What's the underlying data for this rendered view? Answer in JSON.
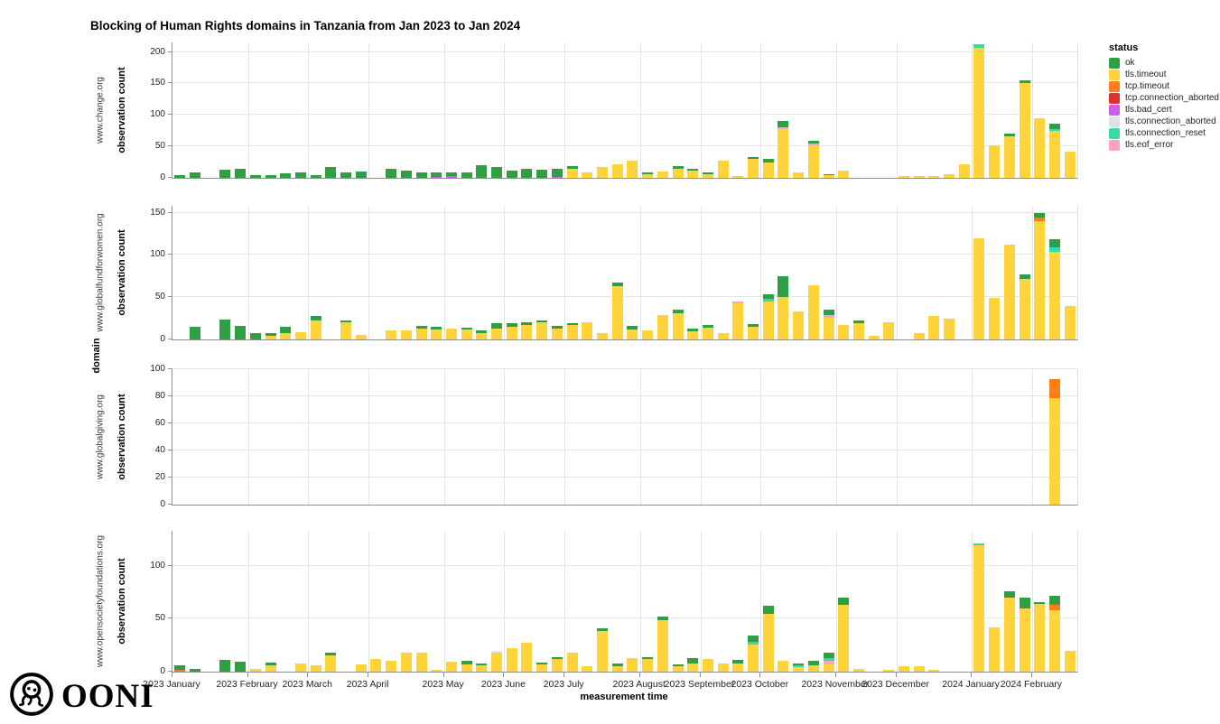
{
  "title": "Blocking of Human Rights domains in Tanzania from Jan 2023 to Jan 2024",
  "logo": {
    "text": "OONI"
  },
  "legend": {
    "title": "status",
    "items": [
      {
        "label": "ok",
        "color": "#2f9e44"
      },
      {
        "label": "tls.timeout",
        "color": "#ffd43b"
      },
      {
        "label": "tcp.timeout",
        "color": "#fd7e14"
      },
      {
        "label": "tcp.connection_aborted",
        "color": "#e03131"
      },
      {
        "label": "tls.bad_cert",
        "color": "#cc5de8"
      },
      {
        "label": "tls.connection_aborted",
        "color": "#dee2e6"
      },
      {
        "label": "tls.connection_reset",
        "color": "#38d9a9"
      },
      {
        "label": "tls.eof_error",
        "color": "#faa2c1"
      }
    ]
  },
  "stack_order": [
    "tls.bad_cert",
    "tls.timeout",
    "tcp.timeout",
    "tcp.connection_aborted",
    "tls.connection_aborted",
    "tls.eof_error",
    "tls.connection_reset",
    "ok"
  ],
  "axes": {
    "x_label": "measurement time",
    "y_label": "observation count",
    "shared_y_label": "domain",
    "total_slots": 60,
    "months": [
      {
        "label": "2023 January",
        "start": 0
      },
      {
        "label": "2023 February",
        "start": 5
      },
      {
        "label": "2023 March",
        "start": 9
      },
      {
        "label": "2023 April",
        "start": 13
      },
      {
        "label": "2023 May",
        "start": 18
      },
      {
        "label": "2023 June",
        "start": 22
      },
      {
        "label": "2023 July",
        "start": 26
      },
      {
        "label": "2023 August",
        "start": 31
      },
      {
        "label": "2023 September",
        "start": 35
      },
      {
        "label": "2023 October",
        "start": 39
      },
      {
        "label": "2023 November",
        "start": 44
      },
      {
        "label": "2023 December",
        "start": 48
      },
      {
        "label": "2024 January",
        "start": 53
      },
      {
        "label": "2024 February",
        "start": 57
      }
    ]
  },
  "chart_data": [
    {
      "type": "bar",
      "domain": "www.change.org",
      "yticks": [
        0,
        50,
        100,
        150,
        200
      ],
      "ylim": 215,
      "bars": [
        {
          "ok": 5
        },
        {
          "ok": 8
        },
        null,
        {
          "ok": 13
        },
        {
          "ok": 15
        },
        {
          "ok": 5
        },
        {
          "ok": 4
        },
        {
          "ok": 7
        },
        {
          "ok": 8
        },
        {
          "ok": 5
        },
        {
          "ok": 17
        },
        {
          "ok": 8
        },
        {
          "ok": 10
        },
        null,
        {
          "ok": 14
        },
        {
          "ok": 12
        },
        {
          "ok": 8
        },
        {
          "tls.bad_cert": 2,
          "ok": 7
        },
        {
          "tls.bad_cert": 3,
          "ok": 5
        },
        {
          "ok": 8
        },
        {
          "ok": 20
        },
        {
          "ok": 17
        },
        {
          "ok": 12
        },
        {
          "ok": 15
        },
        {
          "ok": 13
        },
        {
          "tls.bad_cert": 2,
          "ok": 12
        },
        {
          "tls.timeout": 15,
          "ok": 3
        },
        {
          "tls.timeout": 8
        },
        {
          "tls.timeout": 17
        },
        {
          "tls.timeout": 22
        },
        {
          "tls.timeout": 27
        },
        {
          "tls.timeout": 6,
          "ok": 2
        },
        {
          "tls.timeout": 10
        },
        {
          "tls.timeout": 15,
          "ok": 3
        },
        {
          "tls.timeout": 12,
          "ok": 2
        },
        {
          "tls.timeout": 6,
          "ok": 3
        },
        {
          "tls.timeout": 27
        },
        {
          "tls.timeout": 3
        },
        {
          "tls.timeout": 30,
          "ok": 3
        },
        {
          "tls.timeout": 25,
          "ok": 5
        },
        {
          "tls.timeout": 78,
          "tls.eof_error": 2,
          "ok": 10
        },
        {
          "tls.timeout": 8
        },
        {
          "tls.timeout": 52,
          "tls.eof_error": 1,
          "ok": 5
        },
        {
          "tls.timeout": 4,
          "ok": 2
        },
        {
          "tls.timeout": 12
        },
        null,
        null,
        null,
        {
          "tls.timeout": 3
        },
        {
          "tls.timeout": 3
        },
        {
          "tls.timeout": 3
        },
        {
          "tls.timeout": 6
        },
        {
          "tls.timeout": 21
        },
        {
          "tls.timeout": 206,
          "tls.connection_reset": 6
        },
        {
          "tls.timeout": 51
        },
        {
          "tls.timeout": 66,
          "ok": 5
        },
        {
          "tls.timeout": 150,
          "ok": 5
        },
        {
          "tls.timeout": 95
        },
        {
          "tls.timeout": 74,
          "tls.connection_reset": 4,
          "ok": 8
        },
        {
          "tls.timeout": 42
        }
      ]
    },
    {
      "type": "bar",
      "domain": "www.globalfundforwomen.org",
      "yticks": [
        0,
        50,
        100,
        150
      ],
      "ylim": 158,
      "bars": [
        null,
        {
          "ok": 15
        },
        null,
        {
          "ok": 24
        },
        {
          "ok": 16
        },
        {
          "ok": 8
        },
        {
          "tls.timeout": 4,
          "ok": 4
        },
        {
          "tls.timeout": 8,
          "ok": 7
        },
        {
          "tls.timeout": 9
        },
        {
          "tls.timeout": 22,
          "ok": 6
        },
        null,
        {
          "tls.timeout": 20,
          "ok": 3
        },
        {
          "tls.timeout": 5
        },
        null,
        {
          "tls.timeout": 11
        },
        {
          "tls.timeout": 11
        },
        {
          "tls.timeout": 13,
          "ok": 3
        },
        {
          "tls.timeout": 12,
          "ok": 3
        },
        {
          "tls.timeout": 13
        },
        {
          "tls.timeout": 12,
          "ok": 2
        },
        {
          "tls.timeout": 8,
          "ok": 3
        },
        {
          "tls.timeout": 13,
          "ok": 6
        },
        {
          "tls.timeout": 15,
          "ok": 4
        },
        {
          "tls.timeout": 17,
          "ok": 3
        },
        {
          "tls.timeout": 20,
          "ok": 3
        },
        {
          "tls.timeout": 13,
          "ok": 3
        },
        {
          "tls.timeout": 17,
          "ok": 2
        },
        {
          "tls.timeout": 20
        },
        {
          "tls.timeout": 7
        },
        {
          "tls.timeout": 63,
          "ok": 4
        },
        {
          "tls.timeout": 12,
          "ok": 4
        },
        {
          "tls.timeout": 11
        },
        {
          "tls.timeout": 29
        },
        {
          "tls.timeout": 31,
          "ok": 4
        },
        {
          "tls.timeout": 10,
          "ok": 3
        },
        {
          "tls.timeout": 14,
          "ok": 3
        },
        {
          "tls.timeout": 8
        },
        {
          "tls.timeout": 43,
          "tls.eof_error": 2
        },
        {
          "tls.timeout": 15,
          "ok": 3
        },
        {
          "tls.timeout": 45,
          "tls.connection_reset": 3,
          "ok": 5
        },
        {
          "tls.timeout": 50,
          "ok": 25
        },
        {
          "tls.timeout": 33
        },
        {
          "tls.timeout": 64
        },
        {
          "tls.timeout": 26,
          "tls.eof_error": 3,
          "ok": 6
        },
        {
          "tls.timeout": 17
        },
        {
          "tls.timeout": 19,
          "ok": 4
        },
        {
          "tls.timeout": 4
        },
        {
          "tls.timeout": 20
        },
        null,
        {
          "tls.timeout": 7
        },
        {
          "tls.timeout": 28
        },
        {
          "tls.timeout": 25
        },
        null,
        {
          "tls.timeout": 120
        },
        {
          "tls.timeout": 49
        },
        {
          "tls.timeout": 112
        },
        {
          "tls.timeout": 72,
          "ok": 5
        },
        {
          "tls.timeout": 140,
          "tcp.timeout": 4,
          "ok": 5
        },
        {
          "tls.timeout": 104,
          "tls.connection_reset": 5,
          "ok": 10
        },
        {
          "tls.timeout": 40
        }
      ]
    },
    {
      "type": "bar",
      "domain": "www.globalgiving.org",
      "yticks": [
        0,
        20,
        40,
        60,
        80,
        100
      ],
      "ylim": 100,
      "bars": [
        null,
        null,
        null,
        null,
        null,
        null,
        null,
        null,
        null,
        null,
        null,
        null,
        null,
        null,
        null,
        null,
        null,
        null,
        null,
        null,
        null,
        null,
        null,
        null,
        null,
        null,
        null,
        null,
        null,
        null,
        null,
        null,
        null,
        null,
        null,
        null,
        null,
        null,
        null,
        null,
        null,
        null,
        null,
        null,
        null,
        null,
        null,
        null,
        null,
        null,
        null,
        null,
        null,
        null,
        null,
        null,
        null,
        null,
        {
          "tls.timeout": 79,
          "tcp.timeout": 14
        },
        null
      ]
    },
    {
      "type": "bar",
      "domain": "www.opensocietyfoundations.org",
      "yticks": [
        0,
        50,
        100
      ],
      "ylim": 133,
      "bars": [
        {
          "tcp.timeout": 2,
          "ok": 4
        },
        {
          "ok": 3
        },
        null,
        {
          "ok": 11
        },
        {
          "ok": 9
        },
        {
          "tls.timeout": 3
        },
        {
          "tls.timeout": 6,
          "ok": 3
        },
        null,
        {
          "tls.timeout": 8
        },
        {
          "tls.timeout": 6
        },
        {
          "tls.timeout": 15,
          "ok": 3
        },
        null,
        {
          "tls.timeout": 7
        },
        {
          "tls.timeout": 12
        },
        {
          "tls.timeout": 10
        },
        {
          "tls.timeout": 18
        },
        {
          "tls.timeout": 18
        },
        {
          "tls.timeout": 2
        },
        {
          "tls.timeout": 9
        },
        {
          "tls.timeout": 7,
          "ok": 3
        },
        {
          "tls.timeout": 6,
          "ok": 2
        },
        {
          "tls.timeout": 18,
          "tls.connection_aborted": 2
        },
        {
          "tls.timeout": 22
        },
        {
          "tls.timeout": 27
        },
        {
          "tls.timeout": 7,
          "ok": 2
        },
        {
          "tls.timeout": 12,
          "ok": 2
        },
        {
          "tls.timeout": 18
        },
        {
          "tls.timeout": 5
        },
        {
          "tls.timeout": 38,
          "ok": 3
        },
        {
          "tls.timeout": 5,
          "ok": 3
        },
        {
          "tls.timeout": 13
        },
        {
          "tls.timeout": 12,
          "ok": 2
        },
        {
          "tls.timeout": 49,
          "ok": 3
        },
        {
          "tls.timeout": 5,
          "ok": 2
        },
        {
          "tls.timeout": 8,
          "ok": 5
        },
        {
          "tls.timeout": 12
        },
        {
          "tls.timeout": 8
        },
        {
          "tls.timeout": 8,
          "ok": 3
        },
        {
          "tls.timeout": 26,
          "tls.connection_reset": 2,
          "ok": 6
        },
        {
          "tls.timeout": 55,
          "ok": 7
        },
        {
          "tls.timeout": 10
        },
        {
          "tls.timeout": 4,
          "tls.connection_reset": 2,
          "ok": 2
        },
        {
          "tls.timeout": 6,
          "ok": 4
        },
        {
          "tls.timeout": 7,
          "tls.eof_error": 3,
          "tls.connection_reset": 3,
          "ok": 5
        },
        {
          "tls.timeout": 63,
          "ok": 7
        },
        {
          "tls.timeout": 3
        },
        null,
        {
          "tls.timeout": 2
        },
        {
          "tls.timeout": 5
        },
        {
          "tls.timeout": 5
        },
        {
          "tls.timeout": 2
        },
        null,
        null,
        {
          "tls.timeout": 119,
          "tls.connection_reset": 2
        },
        {
          "tls.timeout": 42
        },
        {
          "tls.timeout": 70,
          "ok": 6
        },
        {
          "tls.timeout": 60,
          "ok": 10
        },
        {
          "tls.timeout": 64,
          "ok": 2
        },
        {
          "tls.timeout": 58,
          "tcp.timeout": 5,
          "ok": 9
        },
        {
          "tls.timeout": 20
        }
      ]
    }
  ]
}
